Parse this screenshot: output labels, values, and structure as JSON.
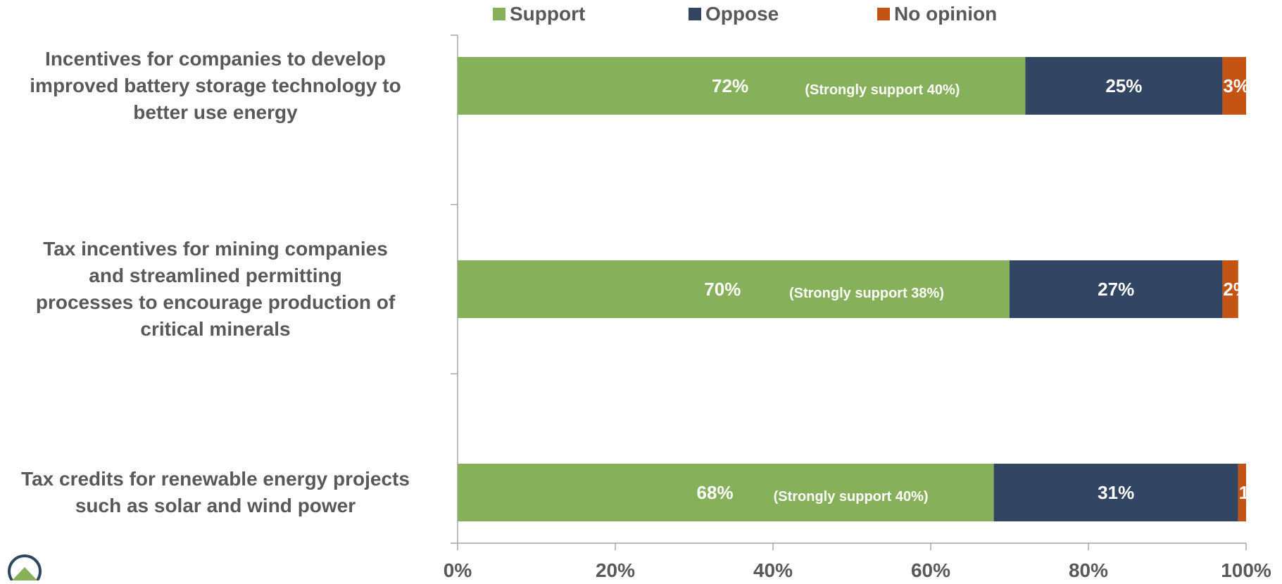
{
  "chart_data": {
    "type": "bar",
    "orientation": "horizontal",
    "stacked": true,
    "categories": [
      "Incentives for companies to develop improved battery storage technology to better use energy",
      "Tax incentives for mining companies and streamlined permitting processes to encourage production of critical minerals",
      "Tax credits for renewable energy projects such as solar and wind power"
    ],
    "category_lines": [
      [
        "Incentives for companies to develop",
        "improved battery storage technology to",
        "better use energy"
      ],
      [
        "Tax incentives for mining companies",
        "and streamlined permitting",
        "processes to encourage production of",
        "critical minerals"
      ],
      [
        "Tax credits for renewable energy projects",
        "such as solar and wind power"
      ]
    ],
    "series": [
      {
        "name": "Support",
        "values": [
          72,
          70,
          68
        ],
        "color": "#86b15a",
        "labels": [
          "72%",
          "70%",
          "68%"
        ]
      },
      {
        "name": "Oppose",
        "values": [
          25,
          27,
          31
        ],
        "color": "#324563",
        "labels": [
          "25%",
          "27%",
          "31%"
        ]
      },
      {
        "name": "No opinion",
        "values": [
          3,
          2,
          1
        ],
        "color": "#c45414",
        "labels": [
          "3%",
          "2%",
          "1%"
        ]
      }
    ],
    "annotations": [
      "(Strongly support 40%)",
      "(Strongly support 38%)",
      "(Strongly support 40%)"
    ],
    "xlim": [
      0,
      100
    ],
    "x_ticks": [
      "0%",
      "20%",
      "40%",
      "60%",
      "80%",
      "100%"
    ],
    "legend_position": "top",
    "grid": false,
    "title": "",
    "xlabel": "",
    "ylabel": ""
  },
  "logo": {
    "icon": "house-logo-icon"
  }
}
